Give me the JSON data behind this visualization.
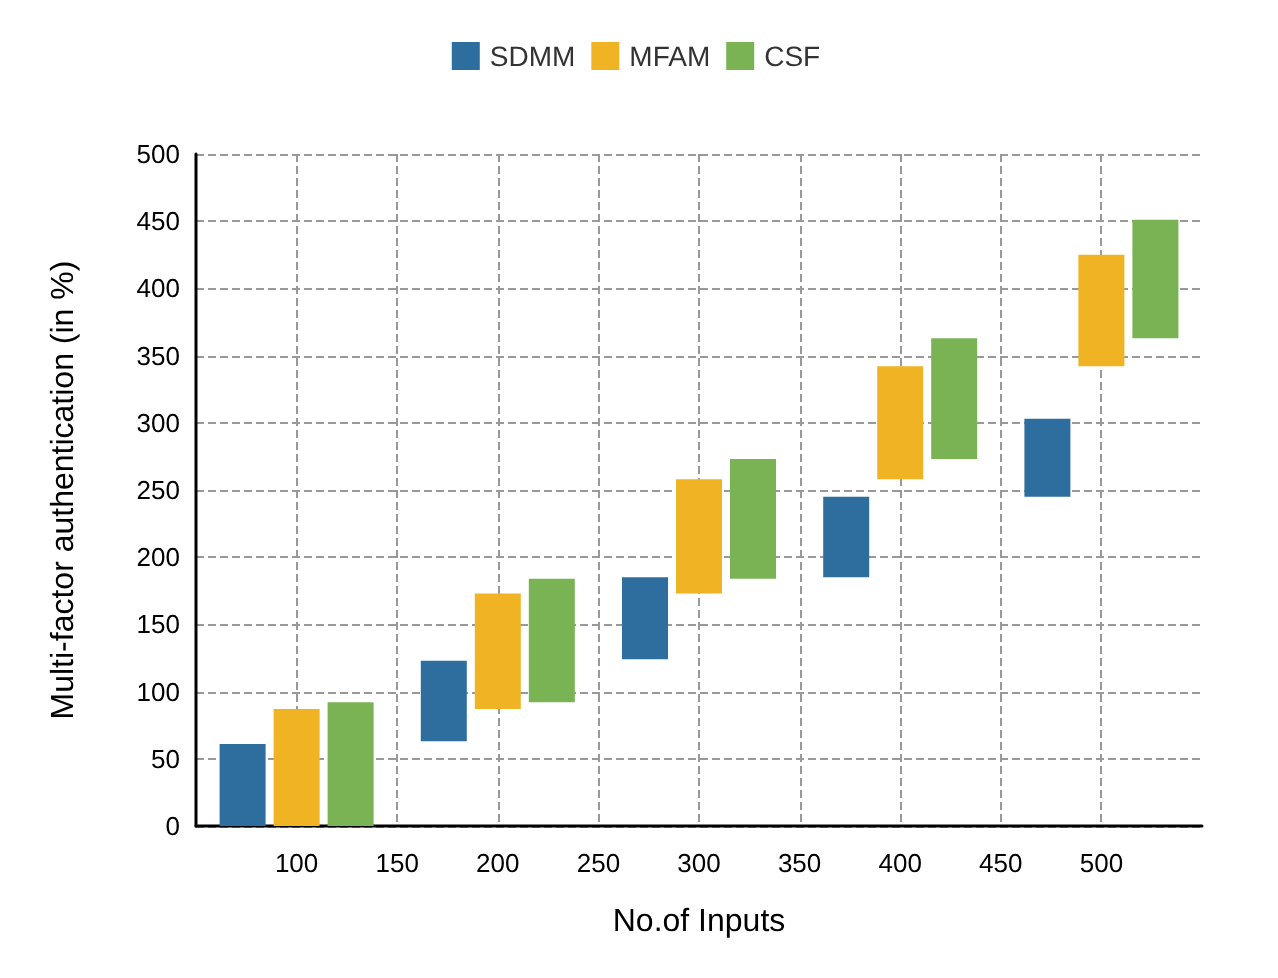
{
  "chart_data": {
    "type": "bar",
    "xlabel": "No.of Inputs",
    "ylabel": "Multi-factor authentication (in %)",
    "x": [
      100,
      200,
      300,
      400,
      500
    ],
    "series": [
      {
        "name": "SDMM",
        "color": "#2e6e9e",
        "base": [
          0,
          63,
          124,
          185,
          245
        ],
        "values": [
          61,
          60,
          61,
          60,
          58
        ]
      },
      {
        "name": "MFAM",
        "color": "#f0b323",
        "base": [
          0,
          87,
          173,
          258,
          342
        ],
        "values": [
          87,
          86,
          85,
          84,
          83
        ]
      },
      {
        "name": "CSF",
        "color": "#7ab354",
        "base": [
          0,
          92,
          184,
          273,
          363
        ],
        "values": [
          92,
          92,
          89,
          90,
          88
        ]
      }
    ],
    "xlim": [
      50,
      550
    ],
    "xticks": [
      100,
      150,
      200,
      250,
      300,
      350,
      400,
      450,
      500
    ],
    "ylim": [
      0,
      500
    ],
    "yticks": [
      0,
      50,
      100,
      150,
      200,
      250,
      300,
      350,
      400,
      450,
      500
    ],
    "grid": true,
    "legend": "top"
  }
}
